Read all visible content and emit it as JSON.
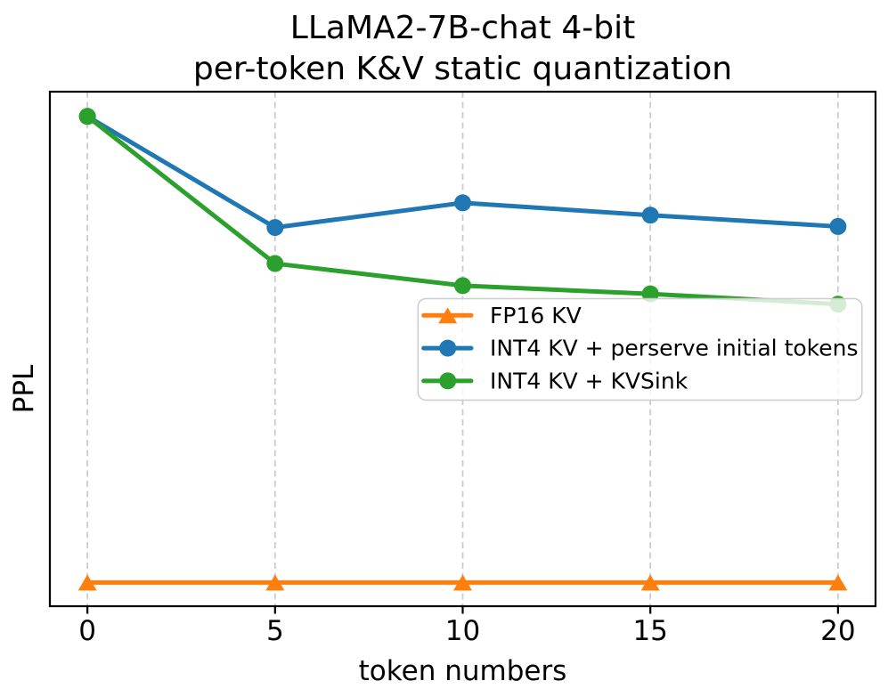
{
  "figure": {
    "title_line1": "LLaMA2-7B-chat 4-bit",
    "title_line2": "per-token K&V static quantization"
  },
  "chart_data": {
    "type": "line",
    "title": "LLaMA2-7B-chat 4-bit\nper-token K&V static quantization",
    "xlabel": "token numbers",
    "ylabel": "PPL",
    "x": [
      0,
      5,
      10,
      15,
      20
    ],
    "x_tick_labels": [
      "0",
      "5",
      "10",
      "15",
      "20"
    ],
    "xlim": [
      -1,
      21
    ],
    "ylim": [
      0,
      1
    ],
    "y_tick_labels": [],
    "y_axis_note": "y axis (PPL) shows no numeric tick labels; series values are normalized fractions of plot height read from the pixels",
    "grid": {
      "vertical_dashed": true,
      "horizontal": false,
      "color": "#cccccc"
    },
    "legend": {
      "frame": true,
      "location": "center right",
      "frame_alpha": 0.8
    },
    "series": [
      {
        "name": "FP16 KV",
        "color": "#ff7f0e",
        "marker": "triangle",
        "values": [
          0.046,
          0.046,
          0.046,
          0.046,
          0.046
        ]
      },
      {
        "name": "INT4 KV + perserve initial tokens",
        "color": "#1f77b4",
        "marker": "circle",
        "values": [
          0.952,
          0.736,
          0.784,
          0.76,
          0.738
        ]
      },
      {
        "name": "INT4 KV + KVSink",
        "color": "#2ca02c",
        "marker": "circle",
        "values": [
          0.952,
          0.666,
          0.623,
          0.607,
          0.587
        ]
      }
    ]
  }
}
